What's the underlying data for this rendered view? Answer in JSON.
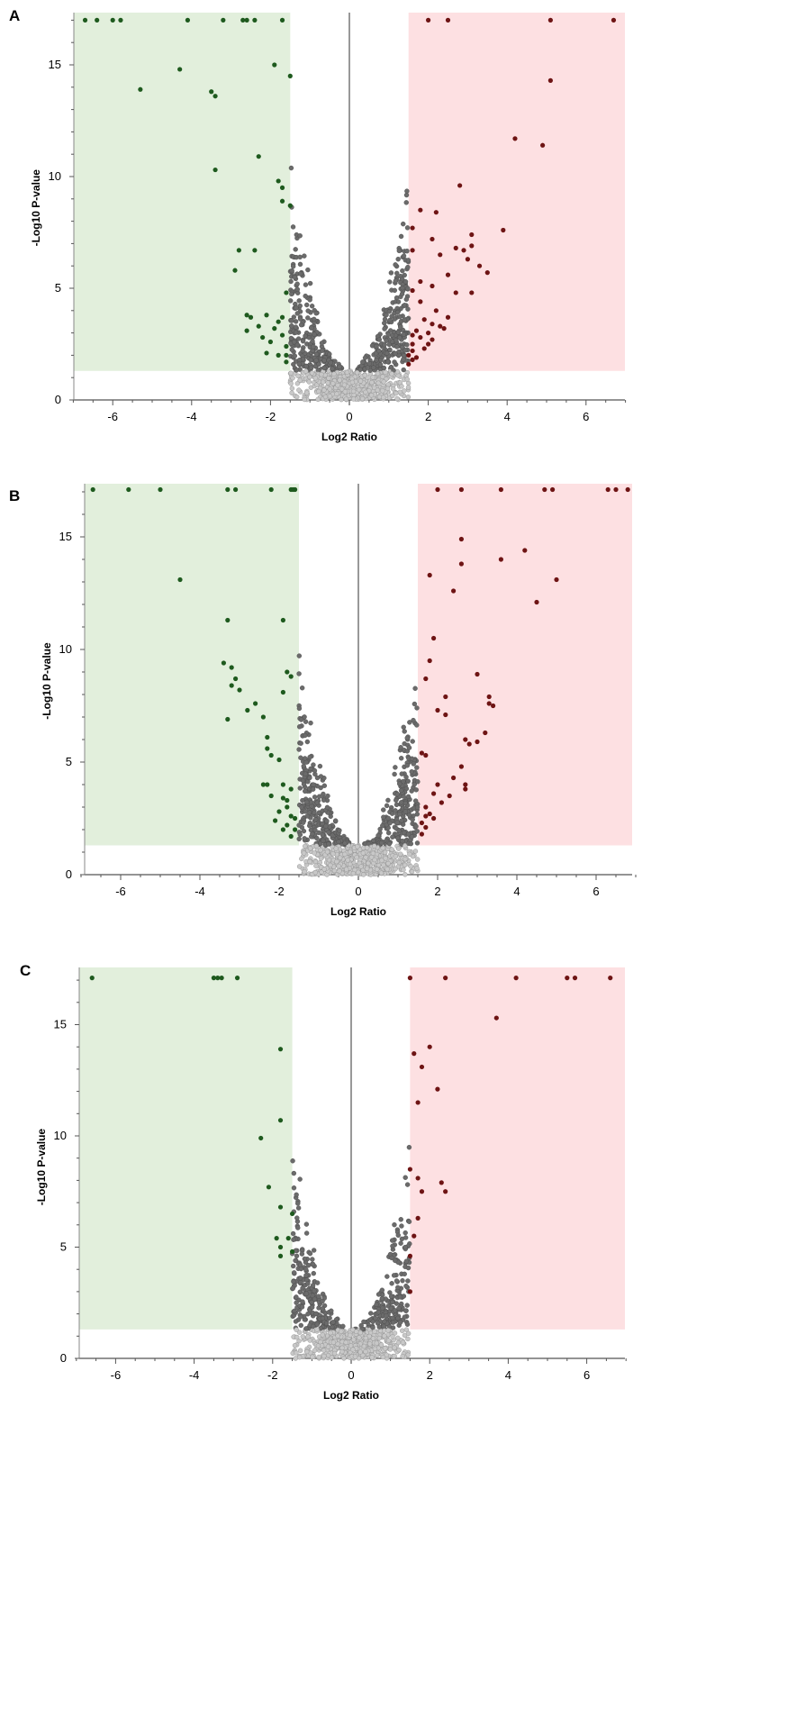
{
  "colors": {
    "down_region": "#e2efdc",
    "up_region": "#fde0e2",
    "down_point": "#1e5a1e",
    "up_point": "#6e1414",
    "ns_point": "#6b6b6b",
    "ns_light_point": "#c8c8c8",
    "axis": "#555555"
  },
  "chart_data": [
    {
      "panel_label": "A",
      "type": "scatter",
      "subtype": "volcano",
      "xlabel": "Log2 Ratio",
      "ylabel": "-Log10 P-value",
      "xlim": [
        -7,
        7
      ],
      "ylim": [
        0,
        17.3
      ],
      "xticks": [
        -6,
        -4,
        -2,
        0,
        2,
        4,
        6
      ],
      "yticks": [
        0,
        5,
        10,
        15
      ],
      "thresholds": {
        "log2_ratio": 1.5,
        "neg_log10_p": 1.3
      },
      "down_regulated": [
        [
          -6.7,
          17
        ],
        [
          -6.4,
          17
        ],
        [
          -6.0,
          17
        ],
        [
          -5.8,
          17
        ],
        [
          -4.1,
          17
        ],
        [
          -3.2,
          17
        ],
        [
          -2.7,
          17
        ],
        [
          -2.6,
          17
        ],
        [
          -2.4,
          17
        ],
        [
          -1.7,
          17
        ],
        [
          -4.3,
          14.8
        ],
        [
          -5.3,
          13.9
        ],
        [
          -3.5,
          13.8
        ],
        [
          -3.4,
          13.6
        ],
        [
          -1.9,
          15
        ],
        [
          -1.5,
          14.5
        ],
        [
          -2.3,
          10.9
        ],
        [
          -3.4,
          10.3
        ],
        [
          -1.8,
          9.8
        ],
        [
          -1.7,
          9.5
        ],
        [
          -1.7,
          8.9
        ],
        [
          -1.5,
          8.7
        ],
        [
          -2.8,
          6.7
        ],
        [
          -2.4,
          6.7
        ],
        [
          -2.9,
          5.8
        ],
        [
          -1.6,
          4.8
        ],
        [
          -2.6,
          3.8
        ],
        [
          -2.5,
          3.7
        ],
        [
          -2.1,
          3.8
        ],
        [
          -1.8,
          3.5
        ],
        [
          -2.3,
          3.3
        ],
        [
          -1.9,
          3.2
        ],
        [
          -2.2,
          2.8
        ],
        [
          -2.0,
          2.6
        ],
        [
          -1.7,
          2.9
        ],
        [
          -1.6,
          2.4
        ],
        [
          -2.1,
          2.1
        ],
        [
          -1.8,
          2.0
        ],
        [
          -1.6,
          2.0
        ],
        [
          -1.6,
          1.7
        ],
        [
          -2.6,
          3.1
        ],
        [
          -1.7,
          3.7
        ]
      ],
      "up_regulated": [
        [
          2.0,
          17
        ],
        [
          2.5,
          17
        ],
        [
          5.1,
          17
        ],
        [
          6.7,
          17
        ],
        [
          5.1,
          14.3
        ],
        [
          4.2,
          11.7
        ],
        [
          4.9,
          11.4
        ],
        [
          2.8,
          9.6
        ],
        [
          1.8,
          8.5
        ],
        [
          2.2,
          8.4
        ],
        [
          3.9,
          7.6
        ],
        [
          1.6,
          7.7
        ],
        [
          2.1,
          7.2
        ],
        [
          3.1,
          7.4
        ],
        [
          3.1,
          6.9
        ],
        [
          2.7,
          6.8
        ],
        [
          2.9,
          6.7
        ],
        [
          1.6,
          6.7
        ],
        [
          2.3,
          6.5
        ],
        [
          3.0,
          6.3
        ],
        [
          3.3,
          6.0
        ],
        [
          3.5,
          5.7
        ],
        [
          2.5,
          5.6
        ],
        [
          1.8,
          5.3
        ],
        [
          2.1,
          5.1
        ],
        [
          3.1,
          4.8
        ],
        [
          2.7,
          4.8
        ],
        [
          1.6,
          4.9
        ],
        [
          1.8,
          4.4
        ],
        [
          2.2,
          4.0
        ],
        [
          2.5,
          3.7
        ],
        [
          1.9,
          3.6
        ],
        [
          2.1,
          3.4
        ],
        [
          2.3,
          3.3
        ],
        [
          1.7,
          3.1
        ],
        [
          2.0,
          3.0
        ],
        [
          1.8,
          2.8
        ],
        [
          2.1,
          2.7
        ],
        [
          1.6,
          2.5
        ],
        [
          1.9,
          2.3
        ],
        [
          1.6,
          2.2
        ],
        [
          1.5,
          2.0
        ],
        [
          1.6,
          1.8
        ],
        [
          1.5,
          1.6
        ],
        [
          1.7,
          1.9
        ],
        [
          2.4,
          3.2
        ],
        [
          2.0,
          2.5
        ],
        [
          1.6,
          2.9
        ]
      ]
    },
    {
      "panel_label": "B",
      "type": "scatter",
      "subtype": "volcano",
      "xlabel": "Log2 Ratio",
      "ylabel": "-Log10 P-value",
      "xlim": [
        -7,
        7
      ],
      "ylim": [
        0,
        17.3
      ],
      "xticks": [
        -6,
        -4,
        -2,
        0,
        2,
        4,
        6
      ],
      "yticks": [
        0,
        5,
        10,
        15
      ],
      "thresholds": {
        "log2_ratio": 1.5,
        "neg_log10_p": 1.3
      },
      "down_regulated": [
        [
          -6.7,
          17.1
        ],
        [
          -5.8,
          17.1
        ],
        [
          -5.0,
          17.1
        ],
        [
          -3.3,
          17.1
        ],
        [
          -3.1,
          17.1
        ],
        [
          -2.2,
          17.1
        ],
        [
          -1.7,
          17.1
        ],
        [
          -1.6,
          17.1
        ],
        [
          -1.65,
          17.1
        ],
        [
          -4.5,
          13.1
        ],
        [
          -3.3,
          11.3
        ],
        [
          -1.9,
          11.3
        ],
        [
          -3.4,
          9.4
        ],
        [
          -3.2,
          9.2
        ],
        [
          -3.1,
          8.7
        ],
        [
          -3.2,
          8.4
        ],
        [
          -3.0,
          8.2
        ],
        [
          -1.8,
          9.0
        ],
        [
          -1.7,
          8.8
        ],
        [
          -1.9,
          8.1
        ],
        [
          -2.6,
          7.6
        ],
        [
          -2.8,
          7.3
        ],
        [
          -3.3,
          6.9
        ],
        [
          -2.4,
          7.0
        ],
        [
          -2.3,
          6.1
        ],
        [
          -2.3,
          5.6
        ],
        [
          -2.2,
          5.3
        ],
        [
          -2.0,
          5.1
        ],
        [
          -2.4,
          4.0
        ],
        [
          -2.3,
          4.0
        ],
        [
          -1.9,
          4.0
        ],
        [
          -1.7,
          3.8
        ],
        [
          -2.2,
          3.5
        ],
        [
          -1.9,
          3.4
        ],
        [
          -1.8,
          3.0
        ],
        [
          -2.0,
          2.8
        ],
        [
          -1.7,
          2.6
        ],
        [
          -2.1,
          2.4
        ],
        [
          -1.8,
          2.2
        ],
        [
          -1.6,
          2.0
        ],
        [
          -1.9,
          2.0
        ],
        [
          -1.6,
          2.5
        ],
        [
          -1.7,
          1.7
        ],
        [
          -1.8,
          3.3
        ]
      ],
      "up_regulated": [
        [
          2.0,
          17.1
        ],
        [
          2.6,
          17.1
        ],
        [
          3.6,
          17.1
        ],
        [
          4.7,
          17.1
        ],
        [
          4.9,
          17.1
        ],
        [
          6.3,
          17.1
        ],
        [
          6.5,
          17.1
        ],
        [
          6.8,
          17.1
        ],
        [
          2.6,
          14.9
        ],
        [
          4.2,
          14.4
        ],
        [
          3.6,
          14.0
        ],
        [
          2.6,
          13.8
        ],
        [
          1.8,
          13.3
        ],
        [
          5.0,
          13.1
        ],
        [
          2.4,
          12.6
        ],
        [
          4.5,
          12.1
        ],
        [
          1.9,
          10.5
        ],
        [
          1.8,
          9.5
        ],
        [
          3.0,
          8.9
        ],
        [
          1.7,
          8.7
        ],
        [
          3.3,
          7.9
        ],
        [
          3.3,
          7.6
        ],
        [
          2.2,
          7.9
        ],
        [
          3.4,
          7.5
        ],
        [
          2.0,
          7.3
        ],
        [
          2.2,
          7.1
        ],
        [
          2.7,
          6.0
        ],
        [
          2.8,
          5.8
        ],
        [
          3.0,
          5.9
        ],
        [
          3.2,
          6.3
        ],
        [
          1.6,
          5.4
        ],
        [
          1.7,
          5.3
        ],
        [
          2.6,
          4.8
        ],
        [
          2.4,
          4.3
        ],
        [
          2.0,
          4.0
        ],
        [
          2.7,
          4.0
        ],
        [
          2.7,
          3.8
        ],
        [
          1.9,
          3.6
        ],
        [
          1.7,
          3.0
        ],
        [
          2.1,
          3.2
        ],
        [
          1.8,
          2.7
        ],
        [
          1.6,
          2.3
        ],
        [
          1.9,
          2.5
        ],
        [
          1.7,
          2.1
        ],
        [
          1.6,
          1.8
        ],
        [
          1.7,
          2.6
        ],
        [
          2.3,
          3.5
        ]
      ]
    },
    {
      "panel_label": "C",
      "type": "scatter",
      "subtype": "volcano",
      "xlabel": "Log2 Ratio",
      "ylabel": "-Log10 P-value",
      "xlim": [
        -7,
        7
      ],
      "ylim": [
        0,
        17.3
      ],
      "xticks": [
        -6,
        -4,
        -2,
        0,
        2,
        4,
        6
      ],
      "yticks": [
        0,
        5,
        10,
        15
      ],
      "thresholds": {
        "log2_ratio": 1.5,
        "neg_log10_p": 1.3
      },
      "down_regulated": [
        [
          -6.6,
          17.1
        ],
        [
          -3.5,
          17.1
        ],
        [
          -3.4,
          17.1
        ],
        [
          -3.3,
          17.1
        ],
        [
          -2.9,
          17.1
        ],
        [
          -1.8,
          13.9
        ],
        [
          -1.8,
          10.7
        ],
        [
          -2.3,
          9.9
        ],
        [
          -2.1,
          7.7
        ],
        [
          -1.8,
          6.8
        ],
        [
          -1.5,
          6.5
        ],
        [
          -1.9,
          5.4
        ],
        [
          -1.6,
          5.4
        ],
        [
          -1.8,
          5.0
        ],
        [
          -1.8,
          4.6
        ],
        [
          -1.5,
          4.8
        ]
      ],
      "up_regulated": [
        [
          1.5,
          17.1
        ],
        [
          2.4,
          17.1
        ],
        [
          4.2,
          17.1
        ],
        [
          5.5,
          17.1
        ],
        [
          5.7,
          17.1
        ],
        [
          6.6,
          17.1
        ],
        [
          3.7,
          15.3
        ],
        [
          2.0,
          14.0
        ],
        [
          1.6,
          13.7
        ],
        [
          1.8,
          13.1
        ],
        [
          2.2,
          12.1
        ],
        [
          1.7,
          11.5
        ],
        [
          1.5,
          8.5
        ],
        [
          1.7,
          8.1
        ],
        [
          2.3,
          7.9
        ],
        [
          2.4,
          7.5
        ],
        [
          1.8,
          7.5
        ],
        [
          1.7,
          6.3
        ],
        [
          1.6,
          5.5
        ],
        [
          1.5,
          4.6
        ],
        [
          1.5,
          3.0
        ]
      ]
    }
  ]
}
